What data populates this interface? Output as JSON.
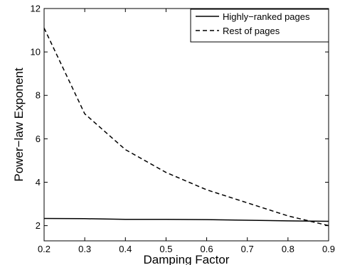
{
  "chart_data": {
    "type": "line",
    "title": "",
    "xlabel": "Damping Factor",
    "ylabel": "Power−law Exponent",
    "xlim": [
      0.2,
      0.9
    ],
    "ylim": [
      1.3,
      12
    ],
    "xticks": [
      0.2,
      0.3,
      0.4,
      0.5,
      0.6,
      0.7,
      0.8,
      0.9
    ],
    "xtick_labels": [
      "0.2",
      "0.3",
      "0.4",
      "0.5",
      "0.6",
      "0.7",
      "0.8",
      "0.9"
    ],
    "yticks": [
      2,
      4,
      6,
      8,
      10,
      12
    ],
    "ytick_labels": [
      "2",
      "4",
      "6",
      "8",
      "10",
      "12"
    ],
    "grid": false,
    "legend_position": "top-right",
    "series": [
      {
        "name": "Highly−ranked pages",
        "line_style": "solid",
        "color": "#000000",
        "x": [
          0.2,
          0.3,
          0.4,
          0.5,
          0.6,
          0.7,
          0.8,
          0.9
        ],
        "y": [
          2.33,
          2.32,
          2.29,
          2.29,
          2.28,
          2.25,
          2.22,
          2.2
        ]
      },
      {
        "name": "Rest of pages",
        "line_style": "dashed",
        "color": "#000000",
        "x": [
          0.2,
          0.3,
          0.4,
          0.5,
          0.6,
          0.7,
          0.8,
          0.9
        ],
        "y": [
          11.1,
          7.15,
          5.5,
          4.45,
          3.65,
          3.05,
          2.45,
          2.0
        ]
      }
    ]
  }
}
